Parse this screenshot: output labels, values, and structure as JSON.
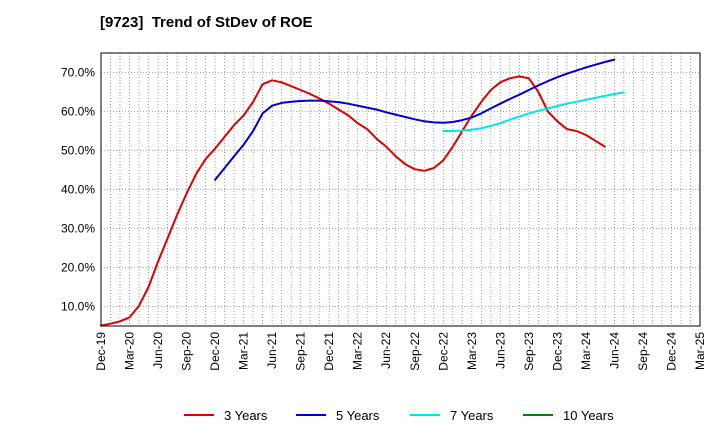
{
  "chart_data": {
    "type": "line",
    "title": "[9723]  Trend of StDev of ROE",
    "xlabel": "",
    "ylabel": "",
    "x_ticks": [
      "Dec-19",
      "Mar-20",
      "Jun-20",
      "Sep-20",
      "Dec-20",
      "Mar-21",
      "Jun-21",
      "Sep-21",
      "Dec-21",
      "Mar-22",
      "Jun-22",
      "Sep-22",
      "Dec-22",
      "Mar-23",
      "Jun-23",
      "Sep-23",
      "Dec-23",
      "Mar-24",
      "Jun-24",
      "Sep-24",
      "Dec-24",
      "Mar-25"
    ],
    "y_ticks": [
      "10.0%",
      "20.0%",
      "30.0%",
      "40.0%",
      "50.0%",
      "60.0%",
      "70.0%"
    ],
    "y_tick_values": [
      10,
      20,
      30,
      40,
      50,
      60,
      70
    ],
    "ylim": [
      5,
      75
    ],
    "grid": true,
    "legend_position": "bottom",
    "series": [
      {
        "name": "3 Years",
        "color": "#dd0000",
        "x_start": "Dec-19",
        "values": [
          5.1,
          5.6,
          6.2,
          7.2,
          10.2,
          15.0,
          21.5,
          27.5,
          33.5,
          39.0,
          44.0,
          47.8,
          50.5,
          53.5,
          56.5,
          59.0,
          62.5,
          67.0,
          68.0,
          67.5,
          66.5,
          65.5,
          64.5,
          63.3,
          62.0,
          60.5,
          59.0,
          57.0,
          55.5,
          53.0,
          51.0,
          48.5,
          46.5,
          45.2,
          44.8,
          45.5,
          47.5,
          51.0,
          55.0,
          59.0,
          62.5,
          65.5,
          67.5,
          68.5,
          69.0,
          68.5,
          65.0,
          60.0,
          57.5,
          55.5,
          55.0,
          54.0,
          52.5,
          51.0
        ]
      },
      {
        "name": "5 Years",
        "color": "#0000cc",
        "x_start": "Dec-20",
        "values": [
          42.5,
          45.5,
          48.5,
          51.5,
          55.0,
          59.5,
          61.5,
          62.2,
          62.5,
          62.7,
          62.8,
          62.8,
          62.6,
          62.4,
          62.0,
          61.5,
          61.0,
          60.5,
          59.8,
          59.2,
          58.6,
          58.0,
          57.5,
          57.2,
          57.1,
          57.3,
          57.8,
          58.5,
          59.5,
          60.8,
          62.0,
          63.2,
          64.3,
          65.5,
          66.7,
          67.8,
          68.8,
          69.7,
          70.5,
          71.3,
          72.0,
          72.7,
          73.3
        ]
      },
      {
        "name": "7 Years",
        "color": "#00e5e5",
        "x_start": "Dec-22",
        "values": [
          55.0,
          55.0,
          55.1,
          55.3,
          55.7,
          56.3,
          57.0,
          57.9,
          58.7,
          59.5,
          60.2,
          60.8,
          61.4,
          62.0,
          62.5,
          63.0,
          63.5,
          64.0,
          64.5,
          64.9
        ]
      },
      {
        "name": "10 Years",
        "color": "#008000",
        "x_start": "",
        "values": []
      }
    ]
  }
}
